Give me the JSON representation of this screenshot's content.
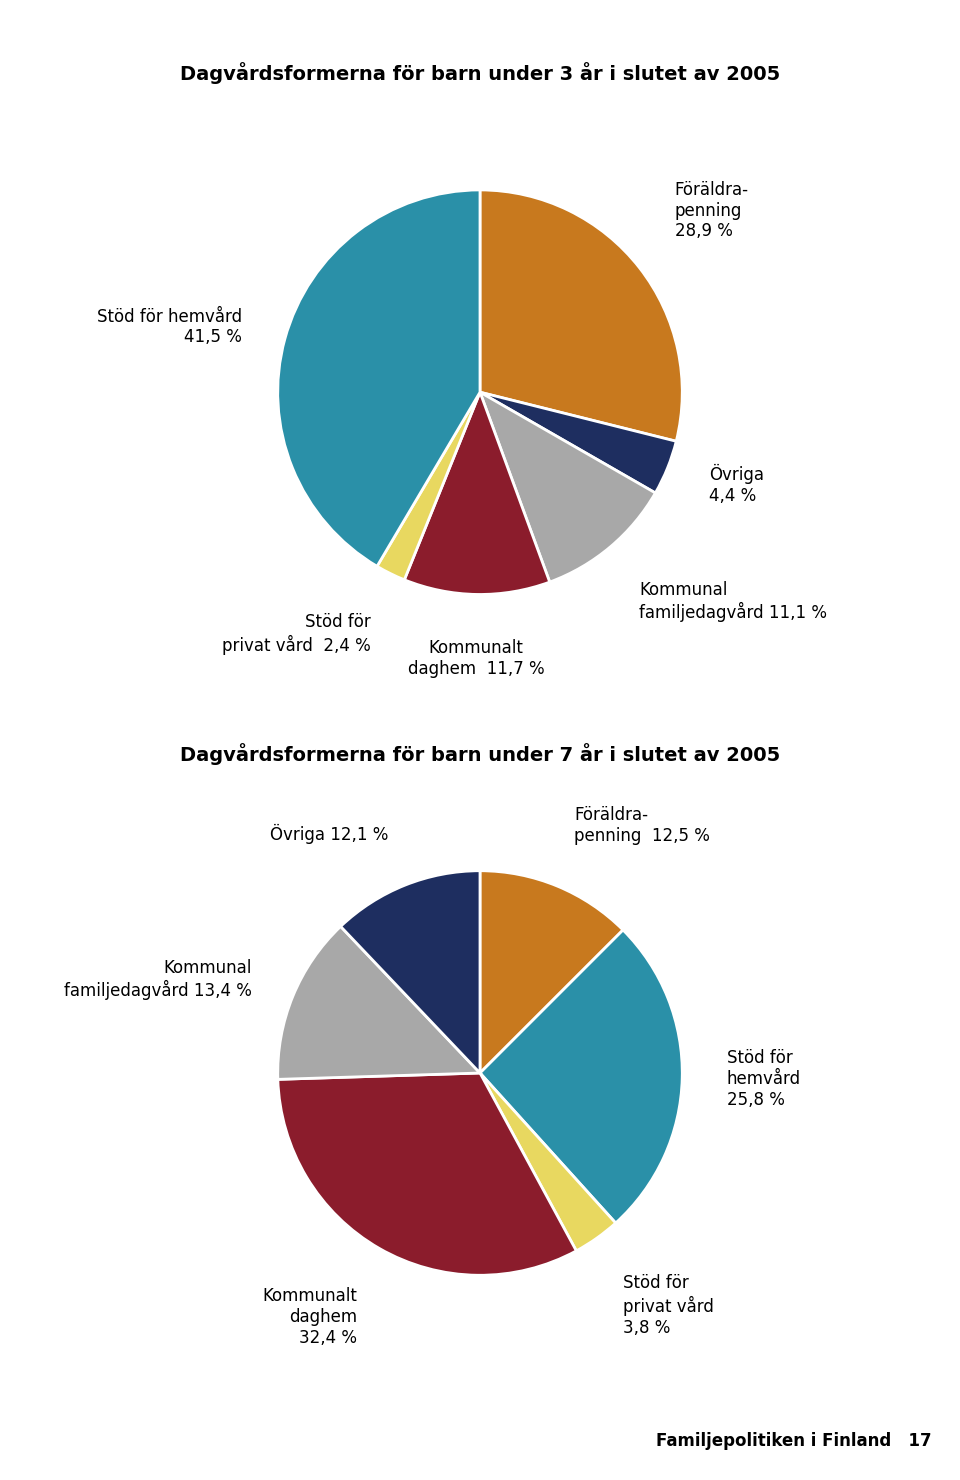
{
  "chart_data": [
    {
      "type": "pie",
      "title": "Dagvårdsformerna för barn under 3 år i slutet av 2005",
      "categories": [
        "Föräldra-\npenning\n28,9 %",
        "Övriga\n4,4 %",
        "Kommunal\nfamiljedagvård 11,1 %",
        "Kommunalt\ndaghem  11,7 %",
        "Stöd för\nprivat vård  2,4 %",
        "Stöd för hemvård\n41,5 %"
      ],
      "values": [
        28.9,
        4.4,
        11.1,
        11.7,
        2.4,
        41.5
      ],
      "colors": [
        "#C8791E",
        "#1E2E60",
        "#A8A8A8",
        "#8B1C2C",
        "#E8D860",
        "#2A90A8"
      ]
    },
    {
      "type": "pie",
      "title": "Dagvårdsformerna för barn under 7 år i slutet av 2005",
      "categories": [
        "Föräldra-\npenning  12,5 %",
        "Stöd för\nhemvård\n25,8 %",
        "Stöd för\nprivat vård\n3,8 %",
        "Kommunalt\ndaghem\n32,4 %",
        "Kommunal\nfamiljedagvård 13,4 %",
        "Övriga 12,1 %"
      ],
      "values": [
        12.5,
        25.8,
        3.8,
        32.4,
        13.4,
        12.1
      ],
      "colors": [
        "#C8791E",
        "#2A90A8",
        "#E8D860",
        "#8B1C2C",
        "#A8A8A8",
        "#1E2E60"
      ],
      "annotations": [
        "Familjepolitiken i Finland   17"
      ]
    }
  ]
}
